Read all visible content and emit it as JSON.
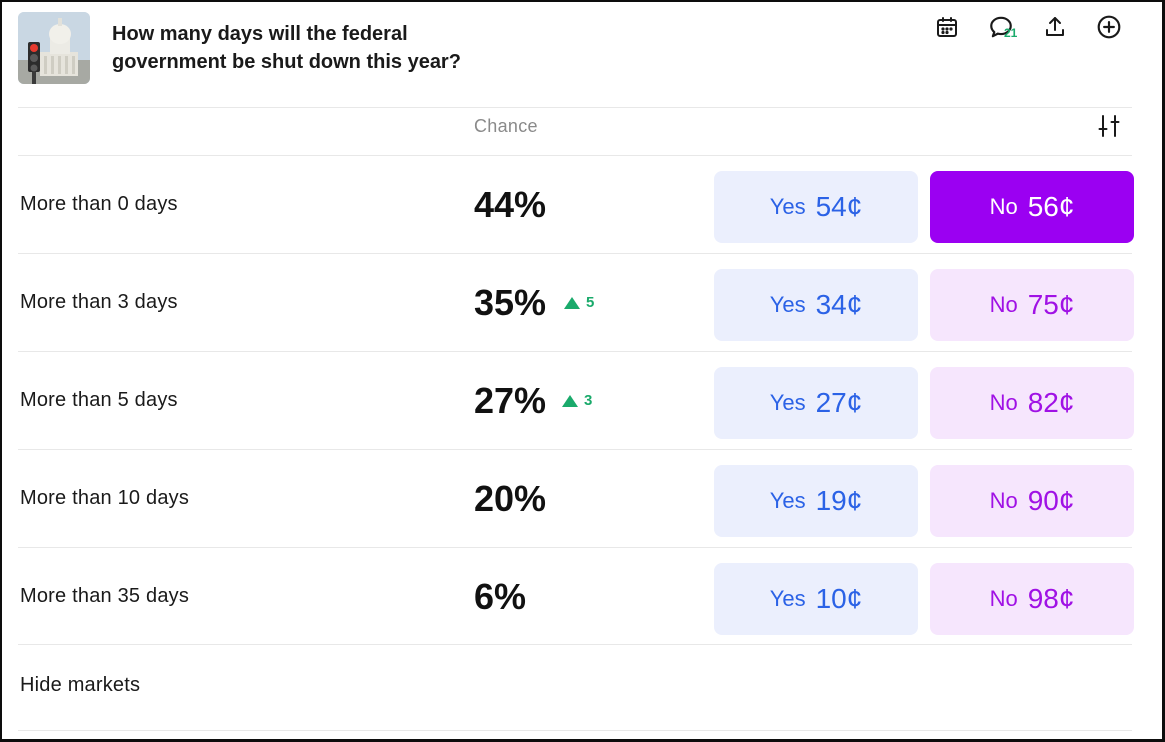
{
  "header": {
    "title": "How many days will the federal government be shut down this year?",
    "comment_count": "21",
    "icons": [
      "calendar-icon",
      "comment-icon",
      "share-icon",
      "add-icon"
    ]
  },
  "table": {
    "chance_label": "Chance",
    "rows": [
      {
        "label": "More than 0 days",
        "chance": "44%",
        "delta": "",
        "yes_label": "Yes",
        "yes_price": "54¢",
        "no_label": "No",
        "no_price": "56¢",
        "no_selected": true
      },
      {
        "label": "More than 3 days",
        "chance": "35%",
        "delta": "5",
        "yes_label": "Yes",
        "yes_price": "34¢",
        "no_label": "No",
        "no_price": "75¢",
        "no_selected": false
      },
      {
        "label": "More than 5 days",
        "chance": "27%",
        "delta": "3",
        "yes_label": "Yes",
        "yes_price": "27¢",
        "no_label": "No",
        "no_price": "82¢",
        "no_selected": false
      },
      {
        "label": "More than 10 days",
        "chance": "20%",
        "delta": "",
        "yes_label": "Yes",
        "yes_price": "19¢",
        "no_label": "No",
        "no_price": "90¢",
        "no_selected": false
      },
      {
        "label": "More than 35 days",
        "chance": "6%",
        "delta": "",
        "yes_label": "Yes",
        "yes_price": "10¢",
        "no_label": "No",
        "no_price": "98¢",
        "no_selected": false
      }
    ]
  },
  "footer": {
    "hide_markets_label": "Hide markets"
  },
  "colors": {
    "yes_bg": "#ebeffd",
    "yes_text": "#2b62e6",
    "no_bg": "#f6e6fd",
    "no_text": "#a011e5",
    "no_selected_bg": "#9b00f2",
    "delta_up": "#1aaa6b"
  }
}
